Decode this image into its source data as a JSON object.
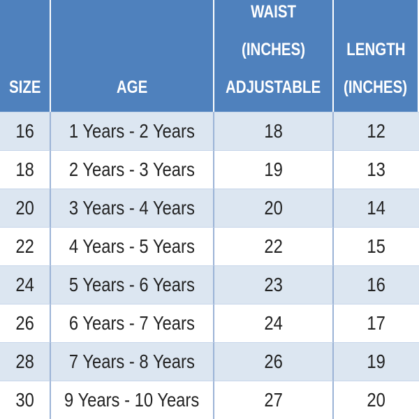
{
  "table": {
    "header": [
      [
        "SIZE"
      ],
      [
        "AGE"
      ],
      [
        "WAIST",
        "(INCHES)",
        "ADJUSTABLE"
      ],
      [
        "LENGTH",
        "(INCHES)"
      ]
    ],
    "rows": [
      [
        16,
        "1 Years - 2 Years",
        18,
        12
      ],
      [
        18,
        "2 Years - 3 Years",
        19,
        13
      ],
      [
        20,
        "3 Years - 4 Years",
        20,
        14
      ],
      [
        22,
        "4 Years - 5 Years",
        22,
        15
      ],
      [
        24,
        "5 Years - 6 Years",
        23,
        16
      ],
      [
        26,
        "6 Years - 7 Years",
        24,
        17
      ],
      [
        28,
        "7 Years - 8 Years",
        26,
        19
      ],
      [
        30,
        "9 Years - 10 Years",
        27,
        20
      ]
    ]
  }
}
